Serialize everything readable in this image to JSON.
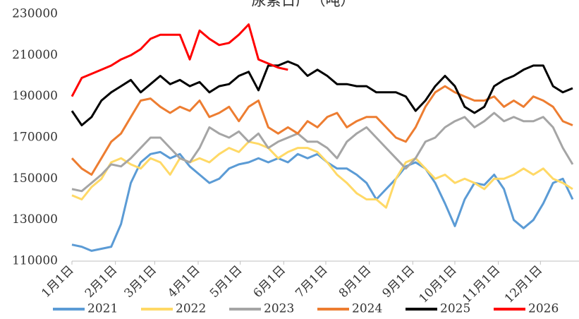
{
  "chart_data": {
    "type": "line",
    "title": "尿素日产（吨）",
    "x": [
      0,
      7,
      14,
      21,
      28,
      35,
      42,
      49,
      56,
      63,
      70,
      77,
      84,
      91,
      98,
      105,
      112,
      119,
      126,
      133,
      140,
      147,
      154,
      161,
      168,
      175,
      182,
      189,
      196,
      203,
      210,
      217,
      224,
      231,
      238,
      245,
      252,
      259,
      266,
      273,
      280,
      287,
      294,
      301,
      308,
      315,
      322,
      329,
      336,
      343,
      350,
      357
    ],
    "xlim": [
      0,
      360
    ],
    "xticks": [
      {
        "value": 0,
        "label": "1月1日"
      },
      {
        "value": 31,
        "label": "2月1日"
      },
      {
        "value": 59,
        "label": "3月1日"
      },
      {
        "value": 90,
        "label": "4月1日"
      },
      {
        "value": 120,
        "label": "5月1日"
      },
      {
        "value": 151,
        "label": "6月1日"
      },
      {
        "value": 181,
        "label": "7月1日"
      },
      {
        "value": 212,
        "label": "8月1日"
      },
      {
        "value": 243,
        "label": "9月1日"
      },
      {
        "value": 273,
        "label": "10月1日"
      },
      {
        "value": 304,
        "label": "11月1日"
      },
      {
        "value": 334,
        "label": "12月1日"
      }
    ],
    "ylim": [
      110000,
      230000
    ],
    "yticks": [
      110000,
      130000,
      150000,
      170000,
      190000,
      210000,
      230000
    ],
    "grid": false,
    "legend": "bottom",
    "series": [
      {
        "name": "2021",
        "color": "#5b9bd5",
        "values": [
          118000,
          117000,
          115000,
          116000,
          117000,
          128000,
          148000,
          158000,
          162000,
          163000,
          160000,
          162000,
          156000,
          152000,
          148000,
          150000,
          155000,
          157000,
          158000,
          160000,
          158000,
          160000,
          158000,
          162000,
          160000,
          162000,
          158000,
          155000,
          155000,
          152000,
          148000,
          140000,
          145000,
          150000,
          156000,
          158000,
          155000,
          148000,
          138000,
          127000,
          140000,
          148000,
          147000,
          152000,
          145000,
          130000,
          126000,
          130000,
          138000,
          148000,
          150000,
          140000
        ]
      },
      {
        "name": "2022",
        "color": "#ffd966",
        "values": [
          142000,
          140000,
          146000,
          150000,
          158000,
          160000,
          157000,
          155000,
          160000,
          158000,
          152000,
          160000,
          158000,
          160000,
          158000,
          162000,
          165000,
          163000,
          168000,
          167000,
          165000,
          160000,
          163000,
          165000,
          165000,
          163000,
          158000,
          152000,
          148000,
          143000,
          140000,
          140000,
          136000,
          150000,
          158000,
          160000,
          155000,
          150000,
          152000,
          148000,
          150000,
          148000,
          145000,
          150000,
          150000,
          152000,
          155000,
          152000,
          155000,
          150000,
          148000,
          145000
        ]
      },
      {
        "name": "2023",
        "color": "#a5a5a5",
        "values": [
          145000,
          144000,
          148000,
          152000,
          157000,
          156000,
          160000,
          165000,
          170000,
          170000,
          165000,
          160000,
          158000,
          165000,
          175000,
          172000,
          170000,
          173000,
          168000,
          172000,
          165000,
          168000,
          170000,
          172000,
          168000,
          168000,
          165000,
          160000,
          168000,
          172000,
          175000,
          170000,
          165000,
          160000,
          155000,
          160000,
          168000,
          170000,
          175000,
          178000,
          180000,
          175000,
          178000,
          182000,
          178000,
          180000,
          178000,
          178000,
          180000,
          175000,
          165000,
          157000
        ]
      },
      {
        "name": "2024",
        "color": "#ed7d31",
        "values": [
          160000,
          155000,
          152000,
          160000,
          168000,
          172000,
          180000,
          188000,
          189000,
          185000,
          182000,
          185000,
          183000,
          188000,
          180000,
          182000,
          185000,
          178000,
          185000,
          188000,
          175000,
          172000,
          175000,
          172000,
          178000,
          175000,
          180000,
          182000,
          175000,
          178000,
          180000,
          180000,
          175000,
          170000,
          168000,
          175000,
          185000,
          192000,
          195000,
          192000,
          190000,
          188000,
          188000,
          190000,
          185000,
          188000,
          185000,
          190000,
          188000,
          185000,
          178000,
          176000
        ]
      },
      {
        "name": "2025",
        "color": "#000000",
        "values": [
          183000,
          176000,
          180000,
          188000,
          192000,
          195000,
          198000,
          192000,
          196000,
          200000,
          196000,
          198000,
          195000,
          197000,
          192000,
          195000,
          196000,
          200000,
          202000,
          193000,
          205000,
          205000,
          207000,
          205000,
          200000,
          203000,
          200000,
          196000,
          196000,
          195000,
          195000,
          192000,
          192000,
          192000,
          190000,
          183000,
          188000,
          195000,
          200000,
          195000,
          185000,
          182000,
          185000,
          195000,
          198000,
          200000,
          203000,
          205000,
          205000,
          195000,
          192000,
          194000
        ]
      },
      {
        "name": "2026",
        "color": "#ff0000",
        "values": [
          190000,
          199000,
          201000,
          203000,
          205000,
          208000,
          210000,
          213000,
          218000,
          220000,
          220000,
          220000,
          208000,
          222000,
          218000,
          215000,
          216000,
          220000,
          225000,
          208000,
          206000,
          204000,
          203000,
          null,
          null,
          null,
          null,
          null,
          null,
          null,
          null,
          null,
          null,
          null,
          null,
          null,
          null,
          null,
          null,
          null,
          null,
          null,
          null,
          null,
          null,
          null,
          null,
          null,
          null,
          null,
          null,
          null
        ]
      }
    ]
  }
}
